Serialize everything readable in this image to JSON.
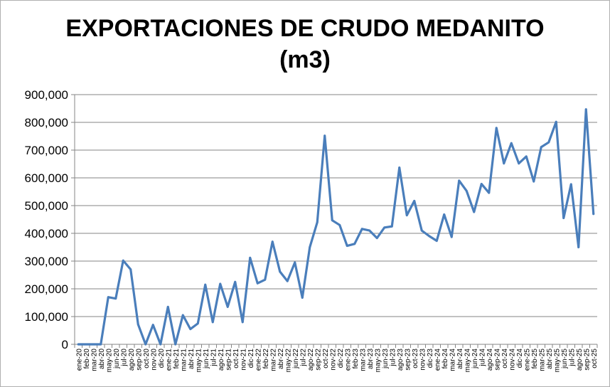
{
  "chart_data": {
    "type": "line",
    "title": "EXPORTACIONES DE CRUDO MEDANITO",
    "subtitle": "(m3)",
    "xlabel": "",
    "ylabel": "",
    "ylim": [
      0,
      900000
    ],
    "y_ticks": [
      "0",
      "100,000",
      "200,000",
      "300,000",
      "400,000",
      "500,000",
      "600,000",
      "700,000",
      "800,000",
      "900,000"
    ],
    "y_tick_values": [
      0,
      100000,
      200000,
      300000,
      400000,
      500000,
      600000,
      700000,
      800000,
      900000
    ],
    "grid": true,
    "legend": "none",
    "line_color": "#4a7ebb",
    "categories": [
      "ene-20",
      "feb-20",
      "mar-20",
      "abr-20",
      "may-20",
      "jun-20",
      "jul-20",
      "ago-20",
      "sep-20",
      "oct-20",
      "nov-20",
      "dic-20",
      "ene-21",
      "feb-21",
      "mar-21",
      "abr-21",
      "may-21",
      "jun-21",
      "jul-21",
      "ago-21",
      "sep-21",
      "oct-21",
      "nov-21",
      "dic-21",
      "ene-22",
      "feb-22",
      "mar-22",
      "abr-22",
      "may-22",
      "jun-22",
      "jul-22",
      "ago-22",
      "sep-22",
      "oct-22",
      "nov-22",
      "dic-22",
      "ene-23",
      "feb-23",
      "mar-23",
      "abr-23",
      "may-23",
      "jun-23",
      "jul-23",
      "ago-23",
      "sep-23",
      "oct-23",
      "nov-23",
      "dic-23",
      "ene-24",
      "feb-24",
      "mar-24",
      "abr-24",
      "may-24",
      "jun-24",
      "jul-24",
      "ago-24",
      "sep-24",
      "oct-24",
      "nov-24",
      "dic-24",
      "ene-25",
      "feb-25",
      "mar-25",
      "abr-25",
      "may-25",
      "jun-25",
      "jul-25",
      "ago-25",
      "sep-25",
      "oct-25"
    ],
    "series": [
      {
        "values": [
          0,
          0,
          0,
          0,
          170000,
          165000,
          302000,
          270000,
          72000,
          0,
          70000,
          0,
          135000,
          0,
          105000,
          55000,
          75000,
          215000,
          80000,
          218000,
          135000,
          225000,
          80000,
          312000,
          220000,
          233000,
          370000,
          262000,
          228000,
          295000,
          168000,
          350000,
          440000,
          752000,
          447000,
          430000,
          355000,
          362000,
          416000,
          410000,
          383000,
          421000,
          425000,
          637000,
          465000,
          517000,
          410000,
          390000,
          373000,
          468000,
          387000,
          590000,
          553000,
          477000,
          578000,
          546000,
          780000,
          652000,
          725000,
          652000,
          677000,
          587000,
          711000,
          728000,
          802000,
          455000,
          577000,
          350000,
          847000,
          470000
        ]
      }
    ]
  }
}
